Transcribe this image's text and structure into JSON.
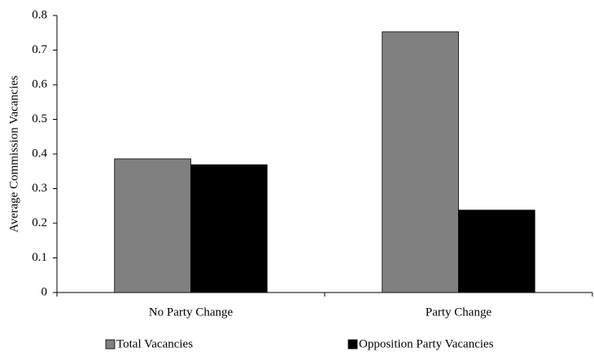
{
  "chart_data": {
    "type": "bar",
    "y_label": "Average Commission Vacancies",
    "categories": [
      "No Party Change",
      "Party Change"
    ],
    "series": [
      {
        "name": "Total Vacancies",
        "color": "#808080",
        "values": [
          0.386,
          0.753
        ]
      },
      {
        "name": "Opposition Party Vacancies",
        "color": "#000000",
        "values": [
          0.369,
          0.238
        ]
      }
    ],
    "ylim": [
      0,
      0.8
    ],
    "yticks": [
      0,
      0.1,
      0.2,
      0.3,
      0.4,
      0.5,
      0.6,
      0.7,
      0.8
    ],
    "grid": false,
    "legend": "bottom"
  }
}
